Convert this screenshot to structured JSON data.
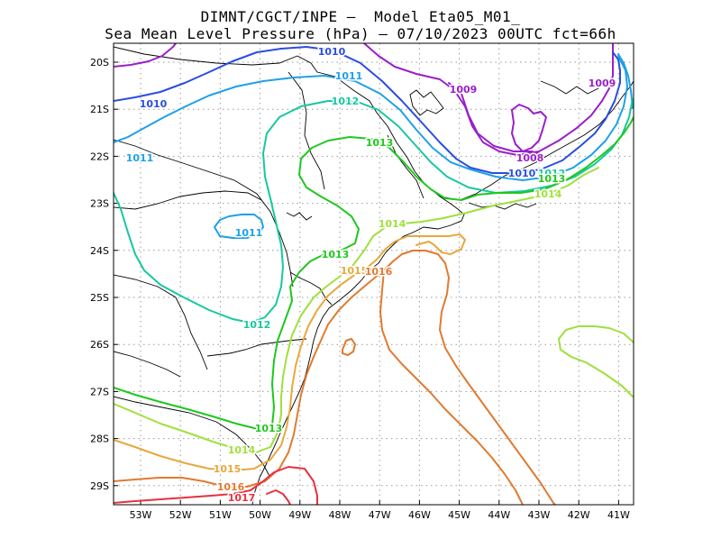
{
  "title": {
    "line1": "DIMNT/CGCT/INPE –  Model Eta05_M01_",
    "line2": "Sea Mean Level Pressure (hPa) – 07/10/2023 00UTC fct=66h"
  },
  "axes": {
    "lat_labels": [
      "20S",
      "21S",
      "22S",
      "23S",
      "24S",
      "25S",
      "26S",
      "27S",
      "28S",
      "29S"
    ],
    "lon_labels": [
      "53W",
      "52W",
      "51W",
      "50W",
      "49W",
      "48W",
      "47W",
      "46W",
      "45W",
      "44W",
      "43W",
      "42W",
      "41W"
    ]
  },
  "colors": {
    "1008": "#9a1fc9",
    "1009": "#9a1fc9",
    "1010": "#2b4de0",
    "1011": "#1ea0e8",
    "1012": "#16c8a0",
    "1013": "#1ec81e",
    "1014": "#a0e03c",
    "1015": "#e8a83c",
    "1016": "#e07a30",
    "1017": "#e83040"
  },
  "isobars": [
    {
      "id": "l1009a",
      "level": "1009"
    },
    {
      "id": "l1009b",
      "level": "1009"
    },
    {
      "id": "l1009c",
      "level": "1009"
    },
    {
      "id": "l1008",
      "level": "1008"
    },
    {
      "id": "l1010",
      "level": "1010"
    },
    {
      "id": "l1011",
      "level": "1011"
    },
    {
      "id": "l1011b",
      "level": "1011"
    },
    {
      "id": "l1011c",
      "level": "1011"
    },
    {
      "id": "l1012",
      "level": "1012"
    },
    {
      "id": "l1013",
      "level": "1013"
    },
    {
      "id": "l1014",
      "level": "1014"
    },
    {
      "id": "l1014b",
      "level": "1014"
    },
    {
      "id": "l1015",
      "level": "1015"
    },
    {
      "id": "l1016",
      "level": "1016"
    },
    {
      "id": "l1016b",
      "level": "1016"
    },
    {
      "id": "l1016c",
      "level": "1016"
    },
    {
      "id": "l1017",
      "level": "1017"
    },
    {
      "id": "l1017b",
      "level": "1017"
    }
  ],
  "contour_labels": [
    {
      "id": "lab1",
      "text": "1010",
      "level": "1010"
    },
    {
      "id": "lab2",
      "text": "1009",
      "level": "1009"
    },
    {
      "id": "lab3",
      "text": "1009",
      "level": "1009"
    },
    {
      "id": "lab4",
      "text": "1010",
      "level": "1010"
    },
    {
      "id": "lab5",
      "text": "1011",
      "level": "1011"
    },
    {
      "id": "lab6",
      "text": "1012",
      "level": "1012"
    },
    {
      "id": "lab7",
      "text": "1013",
      "level": "1013"
    },
    {
      "id": "lab8",
      "text": "1011",
      "level": "1011"
    },
    {
      "id": "lab9",
      "text": "1008",
      "level": "1008"
    },
    {
      "id": "lab10",
      "text": "1010",
      "level": "1010"
    },
    {
      "id": "lab11",
      "text": "1012",
      "level": "1012"
    },
    {
      "id": "lab12",
      "text": "1013",
      "level": "1013"
    },
    {
      "id": "lab13",
      "text": "1014",
      "level": "1014"
    },
    {
      "id": "lab14",
      "text": "1011",
      "level": "1011"
    },
    {
      "id": "lab15",
      "text": "1014",
      "level": "1014"
    },
    {
      "id": "lab16",
      "text": "1013",
      "level": "1013"
    },
    {
      "id": "lab17",
      "text": "1015",
      "level": "1015"
    },
    {
      "id": "lab18",
      "text": "1016",
      "level": "1016"
    },
    {
      "id": "lab19",
      "text": "1012",
      "level": "1012"
    },
    {
      "id": "lab20",
      "text": "1013",
      "level": "1013"
    },
    {
      "id": "lab21",
      "text": "1014",
      "level": "1014"
    },
    {
      "id": "lab22",
      "text": "1015",
      "level": "1015"
    },
    {
      "id": "lab23",
      "text": "1016",
      "level": "1016"
    },
    {
      "id": "lab24",
      "text": "1017",
      "level": "1017"
    }
  ]
}
